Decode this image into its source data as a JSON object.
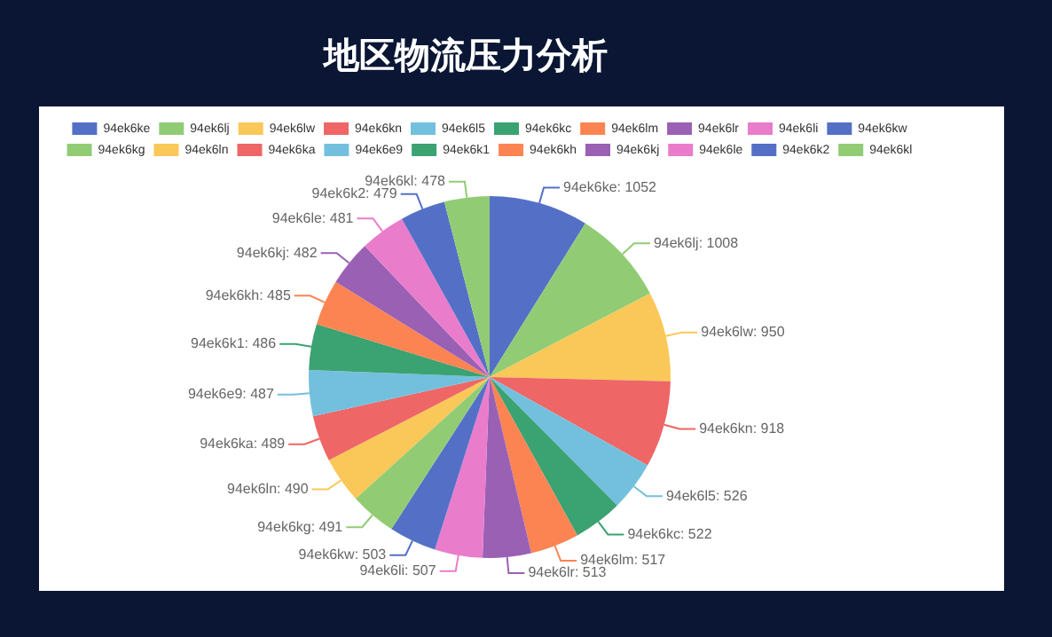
{
  "chart_data": {
    "type": "pie",
    "title": "地区物流压力分析",
    "categories": [
      "94ek6ke",
      "94ek6lj",
      "94ek6lw",
      "94ek6kn",
      "94ek6l5",
      "94ek6kc",
      "94ek6lm",
      "94ek6lr",
      "94ek6li",
      "94ek6kw",
      "94ek6kg",
      "94ek6ln",
      "94ek6ka",
      "94ek6e9",
      "94ek6k1",
      "94ek6kh",
      "94ek6kj",
      "94ek6le",
      "94ek6k2",
      "94ek6kl"
    ],
    "values": [
      1052,
      1008,
      950,
      918,
      526,
      522,
      517,
      513,
      507,
      503,
      491,
      490,
      489,
      487,
      486,
      485,
      482,
      481,
      479,
      478
    ],
    "value_labels": [
      "94ek6ke: 1052",
      "94ek6lj: 1008",
      "94ek6lw: 950",
      "94ek6kn: 918",
      "94ek6l5: 526",
      "94ek6kc: 522",
      "94ek6lm: 517",
      "94ek6lr: 513",
      "94ek6li: 507",
      "94ek6kw: 503",
      "94ek6kg: 491",
      "94ek6ln: 490",
      "94ek6ka: 489",
      "94ek6e9: 487",
      "94ek6k1: 486",
      "94ek6kh: 485",
      "94ek6kj: 482",
      "94ek6le: 481",
      "94ek6k2: 479",
      "94ek6kl: 478"
    ],
    "colors": [
      "#5470c6",
      "#91cc75",
      "#fac858",
      "#ee6666",
      "#73c0de",
      "#3ba272",
      "#fc8452",
      "#9a60b4",
      "#ea7ccc",
      "#5470c6",
      "#91cc75",
      "#fac858",
      "#ee6666",
      "#73c0de",
      "#3ba272",
      "#fc8452",
      "#9a60b4",
      "#ea7ccc",
      "#5470c6",
      "#91cc75"
    ],
    "legend": "top"
  }
}
